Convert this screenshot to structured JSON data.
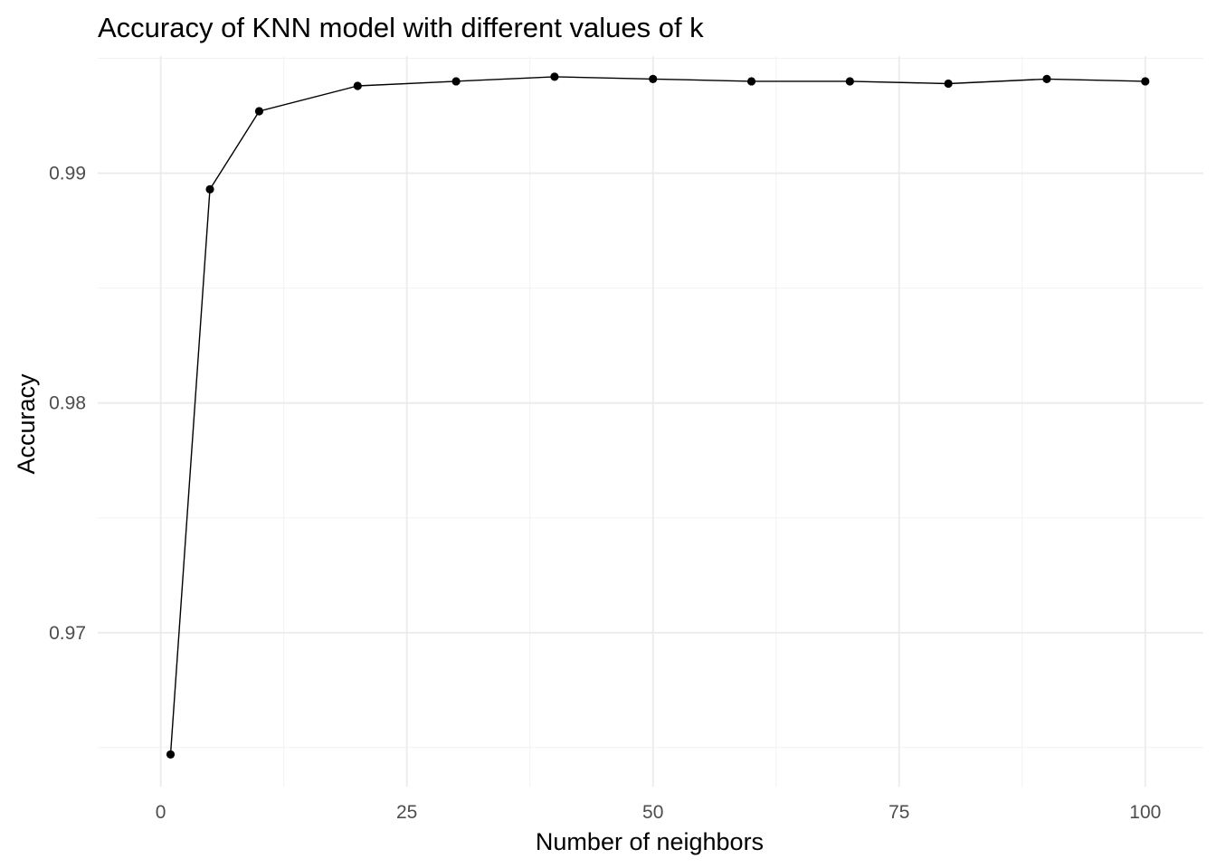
{
  "chart_data": {
    "type": "line",
    "title": "Accuracy of KNN model with different values of k",
    "xlabel": "Number of neighbors",
    "ylabel": "Accuracy",
    "x": [
      1,
      5,
      10,
      20,
      30,
      40,
      50,
      60,
      70,
      80,
      90,
      100
    ],
    "y": [
      0.9647,
      0.9893,
      0.9927,
      0.9938,
      0.994,
      0.9942,
      0.9941,
      0.994,
      0.994,
      0.9939,
      0.9941,
      0.994
    ],
    "xlim": [
      -6.4,
      105.9
    ],
    "ylim": [
      0.9633,
      0.9951
    ],
    "xticks": [
      0,
      25,
      50,
      75,
      100
    ],
    "xtick_labels": [
      "0",
      "25",
      "50",
      "75",
      "100"
    ],
    "yticks": [
      0.97,
      0.98,
      0.99
    ],
    "ytick_labels": [
      "0.97",
      "0.98",
      "0.99"
    ],
    "grid": true,
    "legend": "none",
    "colors": {
      "line": "#000000",
      "points": "#000000",
      "grid": "#ebebeb",
      "background": "#ffffff"
    }
  }
}
